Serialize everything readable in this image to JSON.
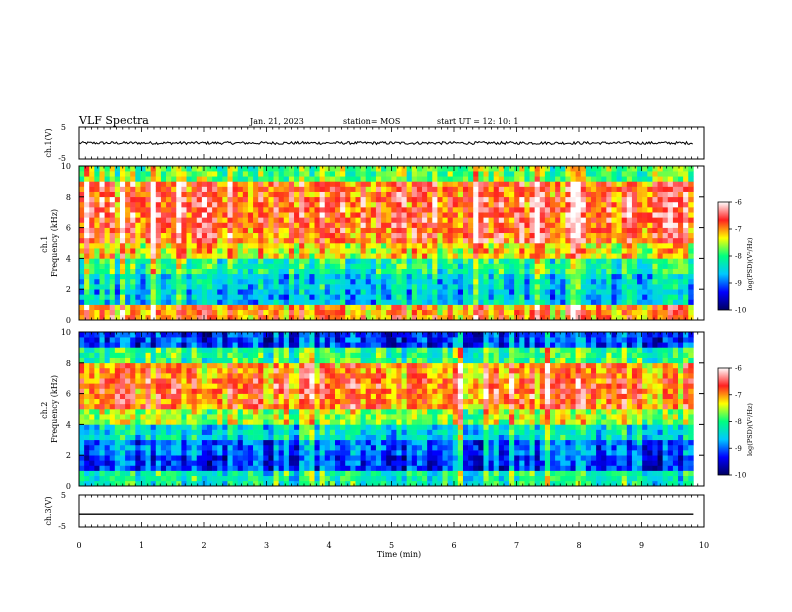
{
  "header": {
    "title": "VLF Spectra",
    "date": "Jan. 21, 2023",
    "station": "station= MOS",
    "start": "start UT =  12: 10: 1"
  },
  "panels": {
    "ch1_wave": {
      "ylabel": "ch.1(V)",
      "ymax": "5",
      "ymin": "-5"
    },
    "ch1_spec": {
      "ylabel": "ch.1\nFrequency (kHz)"
    },
    "ch2_spec": {
      "ylabel": "ch.2\nFrequency (kHz)"
    },
    "ch3_wave": {
      "ylabel": "ch.3(V)",
      "ymax": "5",
      "ymin": "-5"
    }
  },
  "colorbars": [
    {
      "label": "log(PSD)(V²/Hz)",
      "ticks": [
        "-6",
        "-7",
        "-8",
        "-9",
        "-10"
      ]
    },
    {
      "label": "log(PSD)(V²/Hz)",
      "ticks": [
        "-6",
        "-7",
        "-8",
        "-9",
        "-10"
      ]
    }
  ],
  "colors": {
    "scale": [
      "#000060",
      "#0000ff",
      "#00c8ff",
      "#00ff80",
      "#ffff00",
      "#ff2020",
      "#ffffff"
    ]
  },
  "chart_data": [
    {
      "type": "line",
      "xlabel": "Time (min)",
      "ylabel": "ch.1(V)",
      "ylim": [
        -5,
        5
      ],
      "x_range": [
        0,
        9.83
      ],
      "mean_value": 0
    },
    {
      "type": "heatmap",
      "ylabel": "ch.1 Frequency (kHz)",
      "xlim": [
        0,
        10
      ],
      "ylim": [
        0,
        10
      ],
      "yticks": [
        0,
        2,
        4,
        6,
        8,
        10
      ],
      "color_range": [
        -10,
        -6
      ],
      "profile_log_psd": [
        {
          "freq_khz": 0.5,
          "log_psd": -7.0
        },
        {
          "freq_khz": 1.5,
          "log_psd": -8.6
        },
        {
          "freq_khz": 2.5,
          "log_psd": -8.5
        },
        {
          "freq_khz": 3.5,
          "log_psd": -8.1
        },
        {
          "freq_khz": 4.5,
          "log_psd": -7.3
        },
        {
          "freq_khz": 5.5,
          "log_psd": -6.8
        },
        {
          "freq_khz": 6.5,
          "log_psd": -6.7
        },
        {
          "freq_khz": 7.5,
          "log_psd": -6.7
        },
        {
          "freq_khz": 8.5,
          "log_psd": -6.8
        },
        {
          "freq_khz": 9.5,
          "log_psd": -7.8
        }
      ]
    },
    {
      "type": "heatmap",
      "ylabel": "ch.2 Frequency (kHz)",
      "xlim": [
        0,
        10
      ],
      "ylim": [
        0,
        10
      ],
      "yticks": [
        0,
        2,
        4,
        6,
        8,
        10
      ],
      "color_range": [
        -10,
        -6
      ],
      "profile_log_psd": [
        {
          "freq_khz": 0.5,
          "log_psd": -8.2
        },
        {
          "freq_khz": 1.5,
          "log_psd": -9.2
        },
        {
          "freq_khz": 2.5,
          "log_psd": -9.0
        },
        {
          "freq_khz": 3.5,
          "log_psd": -8.4
        },
        {
          "freq_khz": 4.5,
          "log_psd": -7.6
        },
        {
          "freq_khz": 5.5,
          "log_psd": -6.9
        },
        {
          "freq_khz": 6.5,
          "log_psd": -6.8
        },
        {
          "freq_khz": 7.5,
          "log_psd": -7.0
        },
        {
          "freq_khz": 8.5,
          "log_psd": -8.0
        },
        {
          "freq_khz": 9.5,
          "log_psd": -9.2
        }
      ]
    },
    {
      "type": "line",
      "xlabel": "Time (min)",
      "ylabel": "ch.3(V)",
      "ylim": [
        -5,
        5
      ],
      "x_range": [
        0,
        9.83
      ],
      "mean_value": -1
    }
  ],
  "x_axis": {
    "label": "Time (min)",
    "ticks": [
      "0",
      "1",
      "2",
      "3",
      "4",
      "5",
      "6",
      "7",
      "8",
      "9",
      "10"
    ],
    "min": 0,
    "max": 10,
    "data_end": 9.83
  }
}
